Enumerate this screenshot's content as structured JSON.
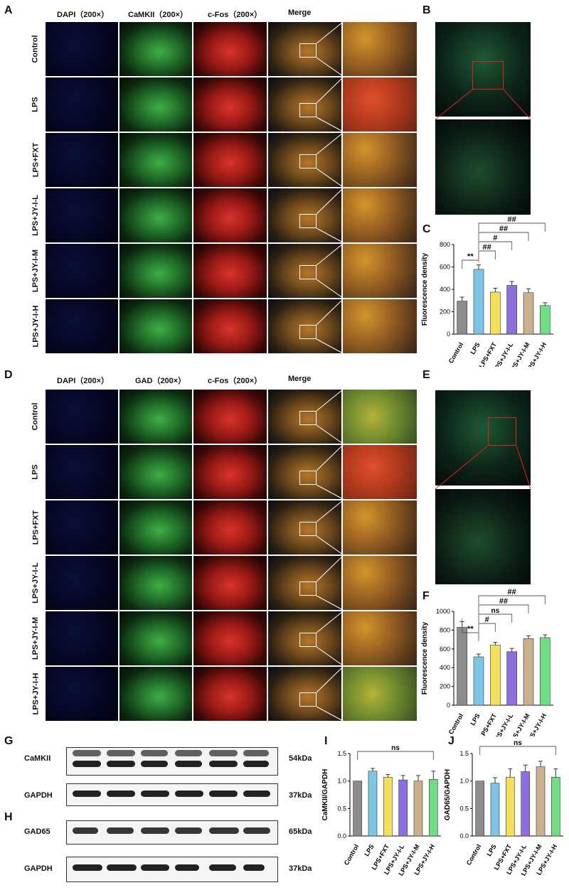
{
  "panel_letters": {
    "A": "A",
    "B": "B",
    "C": "C",
    "D": "D",
    "E": "E",
    "F": "F",
    "G": "G",
    "H": "H",
    "I": "I",
    "J": "J"
  },
  "panelA": {
    "columns": [
      "DAPI（200×）",
      "CaMKII（200×）",
      "c-Fos（200×）",
      "Merge"
    ],
    "rows": [
      "Control",
      "LPS",
      "LPS+FXT",
      "LPS+JY-I-L",
      "LPS+JY-I-M",
      "LPS+JY-I-H"
    ]
  },
  "panelD": {
    "columns": [
      "DAPI（200×）",
      "GAD（200×）",
      "c-Fos（200×）",
      "Merge"
    ],
    "rows": [
      "Control",
      "LPS",
      "LPS+FXT",
      "LPS+JY-I-L",
      "LPS+JY-I-M",
      "LPS+JY-I-H"
    ]
  },
  "blots": {
    "G": [
      {
        "label": "CaMKII",
        "kda": "54kDa"
      },
      {
        "label": "GAPDH",
        "kda": "37kDa"
      }
    ],
    "H": [
      {
        "label": "GAD65",
        "kda": "65kDa"
      },
      {
        "label": "GAPDH",
        "kda": "37kDa"
      }
    ]
  },
  "colors": {
    "Control": "#8c8c8c",
    "LPS": "#7cc6e3",
    "LPS+FXT": "#f3df5c",
    "LPS+JY-I-L": "#8e6fe0",
    "LPS+JY-I-M": "#c9b08f",
    "LPS+JY-I-H": "#6fdc86"
  },
  "chart_data": [
    {
      "id": "C",
      "type": "bar",
      "categories": [
        "Control",
        "LPS",
        "LPS+FXT",
        "LPS+JY-I-L",
        "LPS+JY-I-M",
        "LPS+JY-I-H"
      ],
      "values": [
        295,
        578,
        375,
        435,
        370,
        255
      ],
      "errors": [
        35,
        40,
        35,
        35,
        35,
        25
      ],
      "ylabel": "Fluorescence density",
      "ylim": [
        0,
        800
      ],
      "yticks": [
        0,
        200,
        400,
        600,
        800
      ],
      "annotations": [
        {
          "from": 0,
          "to": 1,
          "text": "**"
        },
        {
          "from": 1,
          "to": 2,
          "text": "##"
        },
        {
          "from": 1,
          "to": 3,
          "text": "#"
        },
        {
          "from": 1,
          "to": 4,
          "text": "##"
        },
        {
          "from": 1,
          "to": 5,
          "text": "##"
        }
      ]
    },
    {
      "id": "F",
      "type": "bar",
      "categories": [
        "Control",
        "LPS",
        "LPS+FXT",
        "LPS+JY-I-L",
        "LPS+JY-I-M",
        "LPS+JY-I-H"
      ],
      "values": [
        830,
        515,
        640,
        570,
        710,
        720
      ],
      "errors": [
        60,
        30,
        30,
        35,
        30,
        30
      ],
      "ylabel": "Fluorescence density",
      "ylim": [
        0,
        1000
      ],
      "yticks": [
        0,
        200,
        400,
        600,
        800,
        1000
      ],
      "annotations": [
        {
          "from": 0,
          "to": 1,
          "text": "**"
        },
        {
          "from": 1,
          "to": 2,
          "text": "#"
        },
        {
          "from": 1,
          "to": 3,
          "text": "ns"
        },
        {
          "from": 1,
          "to": 4,
          "text": "##"
        },
        {
          "from": 1,
          "to": 5,
          "text": "##"
        }
      ]
    },
    {
      "id": "I",
      "type": "bar",
      "categories": [
        "Control",
        "LPS",
        "LPS+FXT",
        "LPS+JY-I-L",
        "LPS+JY-I-M",
        "LPS+JY-I-H"
      ],
      "values": [
        1.0,
        1.18,
        1.07,
        1.02,
        1.0,
        1.03
      ],
      "errors": [
        0,
        0.05,
        0.05,
        0.08,
        0.1,
        0.15
      ],
      "ylabel": "CaMKII/GAPDH",
      "ylim": [
        0,
        1.5
      ],
      "yticks": [
        0.0,
        0.5,
        1.0,
        1.5
      ],
      "annotations": [
        {
          "from": 0,
          "to": 5,
          "text": "ns"
        }
      ]
    },
    {
      "id": "J",
      "type": "bar",
      "categories": [
        "Control",
        "LPS",
        "LPS+FXT",
        "LPS+JY-I-L",
        "LPS+JY-I-M",
        "LPS+JY-I-H"
      ],
      "values": [
        1.0,
        0.96,
        1.07,
        1.17,
        1.26,
        1.07
      ],
      "errors": [
        0,
        0.1,
        0.15,
        0.12,
        0.1,
        0.15
      ],
      "ylabel": "GAD65/GAPDH",
      "ylim": [
        0,
        1.5
      ],
      "yticks": [
        0.0,
        0.5,
        1.0,
        1.5
      ],
      "annotations": [
        {
          "from": 0,
          "to": 5,
          "text": "ns"
        }
      ]
    }
  ]
}
